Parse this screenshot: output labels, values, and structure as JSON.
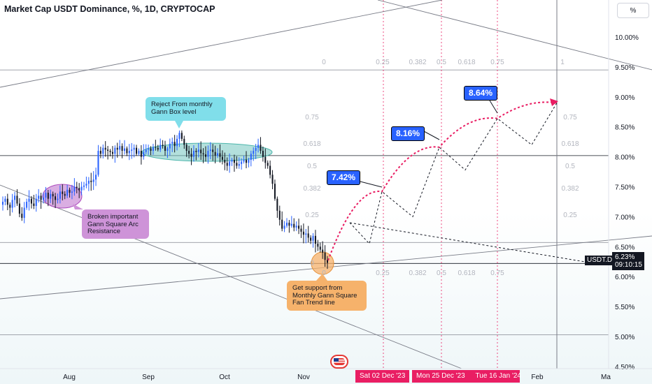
{
  "header": {
    "title": "Market Cap USDT Dominance, %, 1D, CRYPTOCAP",
    "unit_button": "%"
  },
  "chart_data": {
    "type": "candlestick",
    "symbol": "USDT.D",
    "last_value_label": "6.23%",
    "countdown": "09:10:15",
    "y_axis": {
      "ticks": [
        "10.00%",
        "9.50%",
        "9.00%",
        "8.50%",
        "8.00%",
        "7.50%",
        "7.00%",
        "6.50%",
        "6.00%",
        "5.50%",
        "5.00%",
        "4.50%"
      ],
      "values": [
        10.0,
        9.5,
        9.0,
        8.5,
        8.0,
        7.5,
        7.0,
        6.5,
        6.0,
        5.5,
        5.0,
        4.5
      ],
      "range": [
        4.4,
        10.5
      ]
    },
    "x_axis": {
      "ticks": [
        "Aug",
        "Sep",
        "Oct",
        "Nov",
        "Feb",
        "Ma"
      ],
      "date_markers": [
        "Sat 02 Dec '23",
        "Mon 25 Dec '23",
        "Tue 16 Jan '24"
      ]
    },
    "closes": [
      7.25,
      7.3,
      7.2,
      7.15,
      7.28,
      7.35,
      7.22,
      7.05,
      6.98,
      7.15,
      7.25,
      7.3,
      7.22,
      7.18,
      7.3,
      7.35,
      7.28,
      7.32,
      7.4,
      7.3,
      7.38,
      7.34,
      7.28,
      7.3,
      7.42,
      7.38,
      7.35,
      7.45,
      7.4,
      7.42,
      7.5,
      7.48,
      7.44,
      7.5,
      7.52,
      7.55,
      7.6,
      7.58,
      7.62,
      7.7,
      8.1,
      8.05,
      8.15,
      8.12,
      8.1,
      8.08,
      8.05,
      8.15,
      8.12,
      8.18,
      8.1,
      8.14,
      8.06,
      8.1,
      8.12,
      8.15,
      8.05,
      8.1,
      8.0,
      8.08,
      8.12,
      8.14,
      8.1,
      8.16,
      8.15,
      8.12,
      8.2,
      8.18,
      8.1,
      8.14,
      8.22,
      8.25,
      8.18,
      8.3,
      8.4,
      8.3,
      8.2,
      8.1,
      8.05,
      8.0,
      8.1,
      8.08,
      8.12,
      8.06,
      8.04,
      8.0,
      8.1,
      8.12,
      8.08,
      8.02,
      8.06,
      8.0,
      7.95,
      7.9,
      7.85,
      7.92,
      7.95,
      7.9,
      7.85,
      7.88,
      7.92,
      7.95,
      7.9,
      7.95,
      8.05,
      8.1,
      8.15,
      8.2,
      8.1,
      8.0,
      7.9,
      7.85,
      7.7,
      7.55,
      7.3,
      7.1,
      6.95,
      6.8,
      6.85,
      6.9,
      6.85,
      6.88,
      6.82,
      6.85,
      6.8,
      6.75,
      6.7,
      6.72,
      6.65,
      6.6,
      6.68,
      6.55,
      6.5,
      6.45,
      6.4,
      6.28,
      6.23
    ],
    "projection": {
      "arc_points": [
        [
          6.27,
          0
        ],
        [
          7.42,
          1
        ],
        [
          8.16,
          2
        ],
        [
          8.64,
          3
        ],
        [
          8.9,
          4
        ]
      ],
      "zigzag_values": [
        6.9,
        6.55,
        7.42,
        7.0,
        8.16,
        7.78,
        8.64,
        8.2,
        8.9
      ]
    },
    "gann_fan_levels": [
      "0",
      "0.25",
      "0.382",
      "0.5",
      "0.618",
      "0.75",
      "1"
    ],
    "gann_box_levels": [
      "0.75",
      "0.618",
      "0.5",
      "0.382",
      "0.25",
      "0"
    ],
    "annotations": [
      {
        "text": "Reject From monthly Gann Box level"
      },
      {
        "text": "Broken important Gann Square Arc Resistance"
      },
      {
        "text": "Get support from Monthly Gann Square Fan Trend line"
      }
    ],
    "target_labels": [
      "7.42%",
      "8.16%",
      "8.64%"
    ]
  },
  "colors": {
    "up": "#2962ff",
    "down": "#131722",
    "projection": "#e91e63",
    "annotation_cyan": "#80deea",
    "annotation_purple": "#ce93d8",
    "annotation_orange": "#f6b26b"
  }
}
